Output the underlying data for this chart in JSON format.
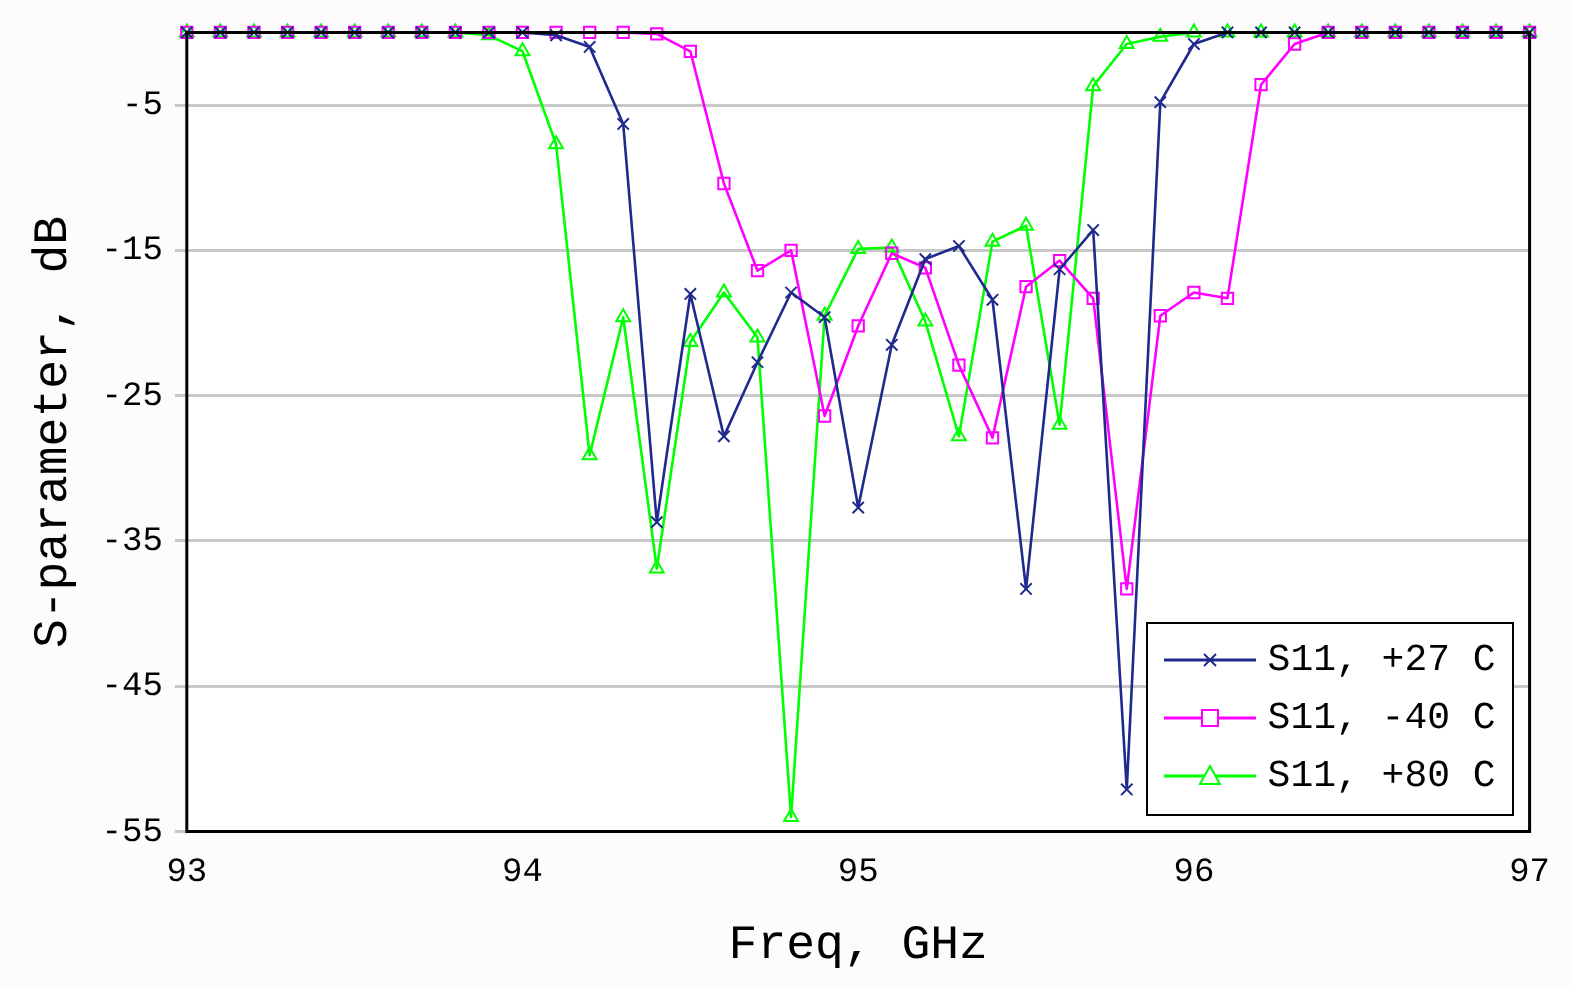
{
  "chart_data": {
    "type": "line",
    "xlabel": "Freq, GHz",
    "ylabel": "S-parameter, dB",
    "x": [
      93,
      93.1,
      93.2,
      93.3,
      93.4,
      93.5,
      93.6,
      93.7,
      93.8,
      93.9,
      94,
      94.1,
      94.2,
      94.3,
      94.4,
      94.5,
      94.6,
      94.7,
      94.8,
      94.9,
      95,
      95.1,
      95.2,
      95.3,
      95.4,
      95.5,
      95.6,
      95.7,
      95.8,
      95.9,
      96,
      96.1,
      96.2,
      96.3,
      96.4,
      96.5,
      96.6,
      96.7,
      96.8,
      96.9,
      97
    ],
    "series": [
      {
        "name": "S11, +27 C",
        "color": "#1f2a8c",
        "marker": "cross",
        "values": [
          0,
          0,
          0,
          0,
          0,
          0,
          0,
          0,
          0,
          0,
          0,
          -0.2,
          -1,
          -6.3,
          -33.7,
          -18,
          -27.8,
          -22.7,
          -17.9,
          -19.6,
          -32.7,
          -21.5,
          -15.6,
          -14.7,
          -18.4,
          -38.3,
          -16.3,
          -13.6,
          -52.1,
          -4.8,
          -0.8,
          0,
          0,
          0,
          0,
          0,
          0,
          0,
          0,
          0,
          0
        ]
      },
      {
        "name": "S11, -40 C",
        "color": "#ff00ff",
        "marker": "square",
        "values": [
          0,
          0,
          0,
          0,
          0,
          0,
          0,
          0,
          0,
          0,
          0,
          0,
          0,
          0,
          -0.1,
          -1.3,
          -10.4,
          -16.4,
          -15,
          -26.4,
          -20.2,
          -15.2,
          -16.2,
          -22.9,
          -27.9,
          -17.5,
          -15.7,
          -18.3,
          -38.3,
          -19.5,
          -17.9,
          -18.3,
          -3.6,
          -0.8,
          0,
          0,
          0,
          0,
          0,
          0,
          0
        ]
      },
      {
        "name": "S11, +80 C",
        "color": "#00ff00",
        "marker": "triangle",
        "values": [
          0,
          0,
          0,
          0,
          0,
          0,
          0,
          0,
          0,
          -0.2,
          -1.3,
          -7.7,
          -29.1,
          -19.6,
          -36.9,
          -21.3,
          -17.9,
          -21,
          -54,
          -19.5,
          -14.9,
          -14.8,
          -19.9,
          -27.8,
          -14.4,
          -13.3,
          -27,
          -3.7,
          -0.8,
          -0.3,
          0,
          0,
          0,
          0,
          0,
          0,
          0,
          0,
          0,
          0,
          0
        ]
      }
    ],
    "xlim": [
      93,
      97
    ],
    "xticks": [
      93,
      94,
      95,
      96,
      97
    ],
    "ylim": [
      -55,
      0
    ],
    "yticks": [
      -5,
      -15,
      -25,
      -35,
      -45,
      -55
    ],
    "grid": "y",
    "legend": "bottom right",
    "line_style": "solid"
  }
}
